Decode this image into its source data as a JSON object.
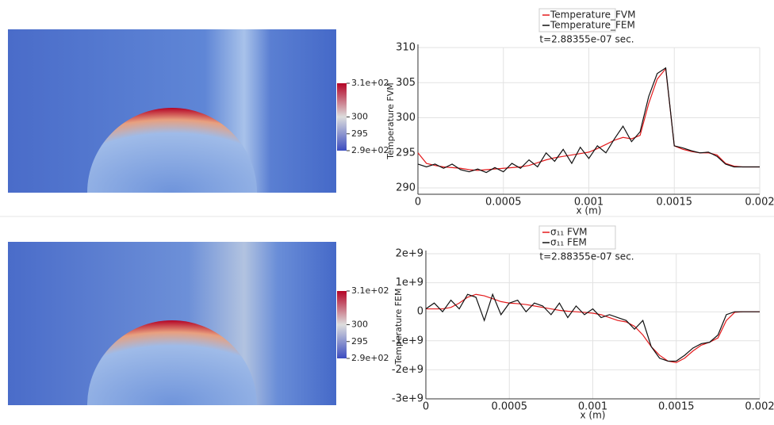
{
  "chart_data": [
    {
      "type": "line",
      "subtitle": "t=2.88355e-07 sec.",
      "x_label": "x (m)",
      "y_label": "Temperature FVM",
      "x": [
        0,
        5e-05,
        0.0001,
        0.00015,
        0.0002,
        0.00025,
        0.0003,
        0.00035,
        0.0004,
        0.00045,
        0.0005,
        0.00055,
        0.0006,
        0.00065,
        0.0007,
        0.00075,
        0.0008,
        0.00085,
        0.0009,
        0.00095,
        0.001,
        0.00105,
        0.0011,
        0.00115,
        0.0012,
        0.00125,
        0.0013,
        0.00135,
        0.0014,
        0.00145,
        0.0015,
        0.00155,
        0.0016,
        0.00165,
        0.0017,
        0.00175,
        0.0018,
        0.00185,
        0.0019,
        0.00195,
        0.002
      ],
      "series": [
        {
          "name": "Temperature_FVM",
          "color": "#e41a1c",
          "values": [
            295,
            293.5,
            293.2,
            293,
            292.9,
            292.8,
            292.6,
            292.5,
            292.6,
            292.7,
            292.8,
            292.9,
            293,
            293.2,
            293.6,
            294,
            294.3,
            294.5,
            294.7,
            294.9,
            295.1,
            295.6,
            296.2,
            296.8,
            297.2,
            297,
            297.5,
            302,
            305.5,
            307,
            296,
            295.5,
            295.2,
            295,
            295,
            294.7,
            293.5,
            293.1,
            293,
            293,
            293
          ]
        },
        {
          "name": "Temperature_FEM",
          "color": "#111111",
          "values": [
            293.4,
            293,
            293.4,
            292.8,
            293.4,
            292.6,
            292.3,
            292.7,
            292.2,
            292.9,
            292.3,
            293.5,
            292.8,
            294,
            293,
            295,
            293.8,
            295.5,
            293.5,
            295.8,
            294.2,
            296,
            295,
            297,
            298.8,
            296.6,
            298,
            303,
            306.3,
            307.1,
            296,
            295.7,
            295.3,
            295,
            295.1,
            294.5,
            293.4,
            293,
            293,
            293,
            293
          ]
        }
      ],
      "xlim": [
        0,
        0.002
      ],
      "xticks": [
        0,
        0.0005,
        0.001,
        0.0015,
        0.002
      ],
      "ylim": [
        289.1,
        310
      ],
      "yticks": [
        290,
        295,
        300,
        305,
        310
      ],
      "grid": true
    },
    {
      "type": "line",
      "subtitle": "t=2.88355e-07 sec.",
      "x_label": "x (m)",
      "y_label": "Temperature FEM",
      "x": [
        0,
        5e-05,
        0.0001,
        0.00015,
        0.0002,
        0.00025,
        0.0003,
        0.00035,
        0.0004,
        0.00045,
        0.0005,
        0.00055,
        0.0006,
        0.00065,
        0.0007,
        0.00075,
        0.0008,
        0.00085,
        0.0009,
        0.00095,
        0.001,
        0.00105,
        0.0011,
        0.00115,
        0.0012,
        0.00125,
        0.0013,
        0.00135,
        0.0014,
        0.00145,
        0.0015,
        0.00155,
        0.0016,
        0.00165,
        0.0017,
        0.00175,
        0.0018,
        0.00185,
        0.0019,
        0.00195,
        0.002
      ],
      "series": [
        {
          "name": "σ₁₁ FVM",
          "color": "#e41a1c",
          "values": [
            100000000,
            100000000,
            100000000,
            150000000,
            300000000,
            500000000,
            600000000,
            550000000,
            450000000,
            350000000,
            300000000,
            280000000,
            250000000,
            200000000,
            150000000,
            100000000,
            50000000,
            20000000,
            0,
            -20000000,
            -50000000,
            -100000000,
            -200000000,
            -300000000,
            -350000000,
            -500000000,
            -800000000,
            -1200000000,
            -1500000000,
            -1700000000,
            -1750000000,
            -1600000000,
            -1350000000,
            -1150000000,
            -1050000000,
            -900000000,
            -300000000,
            -20000000,
            0,
            0,
            0
          ]
        },
        {
          "name": "σ₁₁ FEM",
          "color": "#111111",
          "values": [
            100000000,
            300000000,
            0,
            400000000,
            100000000,
            600000000,
            500000000,
            -300000000,
            600000000,
            -100000000,
            300000000,
            400000000,
            0,
            300000000,
            200000000,
            -100000000,
            300000000,
            -200000000,
            200000000,
            -100000000,
            100000000,
            -200000000,
            -100000000,
            -200000000,
            -300000000,
            -600000000,
            -300000000,
            -1200000000,
            -1600000000,
            -1700000000,
            -1700000000,
            -1500000000,
            -1250000000,
            -1100000000,
            -1050000000,
            -800000000,
            -100000000,
            0,
            0,
            0,
            0
          ]
        }
      ],
      "xlim": [
        0,
        0.002
      ],
      "xticks": [
        0,
        0.0005,
        0.001,
        0.0015,
        0.002
      ],
      "ylim": [
        -3000000000,
        2000000000
      ],
      "yticks": [
        {
          "value": -3000000000,
          "label": "-3e+9"
        },
        {
          "value": -2000000000,
          "label": "-2e+9"
        },
        {
          "value": -1000000000,
          "label": "-1e+9"
        },
        0,
        {
          "value": 1000000000,
          "label": "1e+9"
        },
        {
          "value": 2000000000,
          "label": "2e+9"
        }
      ],
      "grid": true
    }
  ],
  "colorbars": [
    {
      "range": [
        290,
        310
      ],
      "ticks": [
        {
          "value": 310,
          "label": "3.1e+02"
        },
        300,
        295,
        {
          "value": 290,
          "label": "2.9e+02"
        }
      ]
    },
    {
      "range": [
        290,
        310
      ],
      "ticks": [
        {
          "value": 310,
          "label": "3.1e+02"
        },
        300,
        295,
        {
          "value": 290,
          "label": "2.9e+02"
        }
      ]
    }
  ]
}
